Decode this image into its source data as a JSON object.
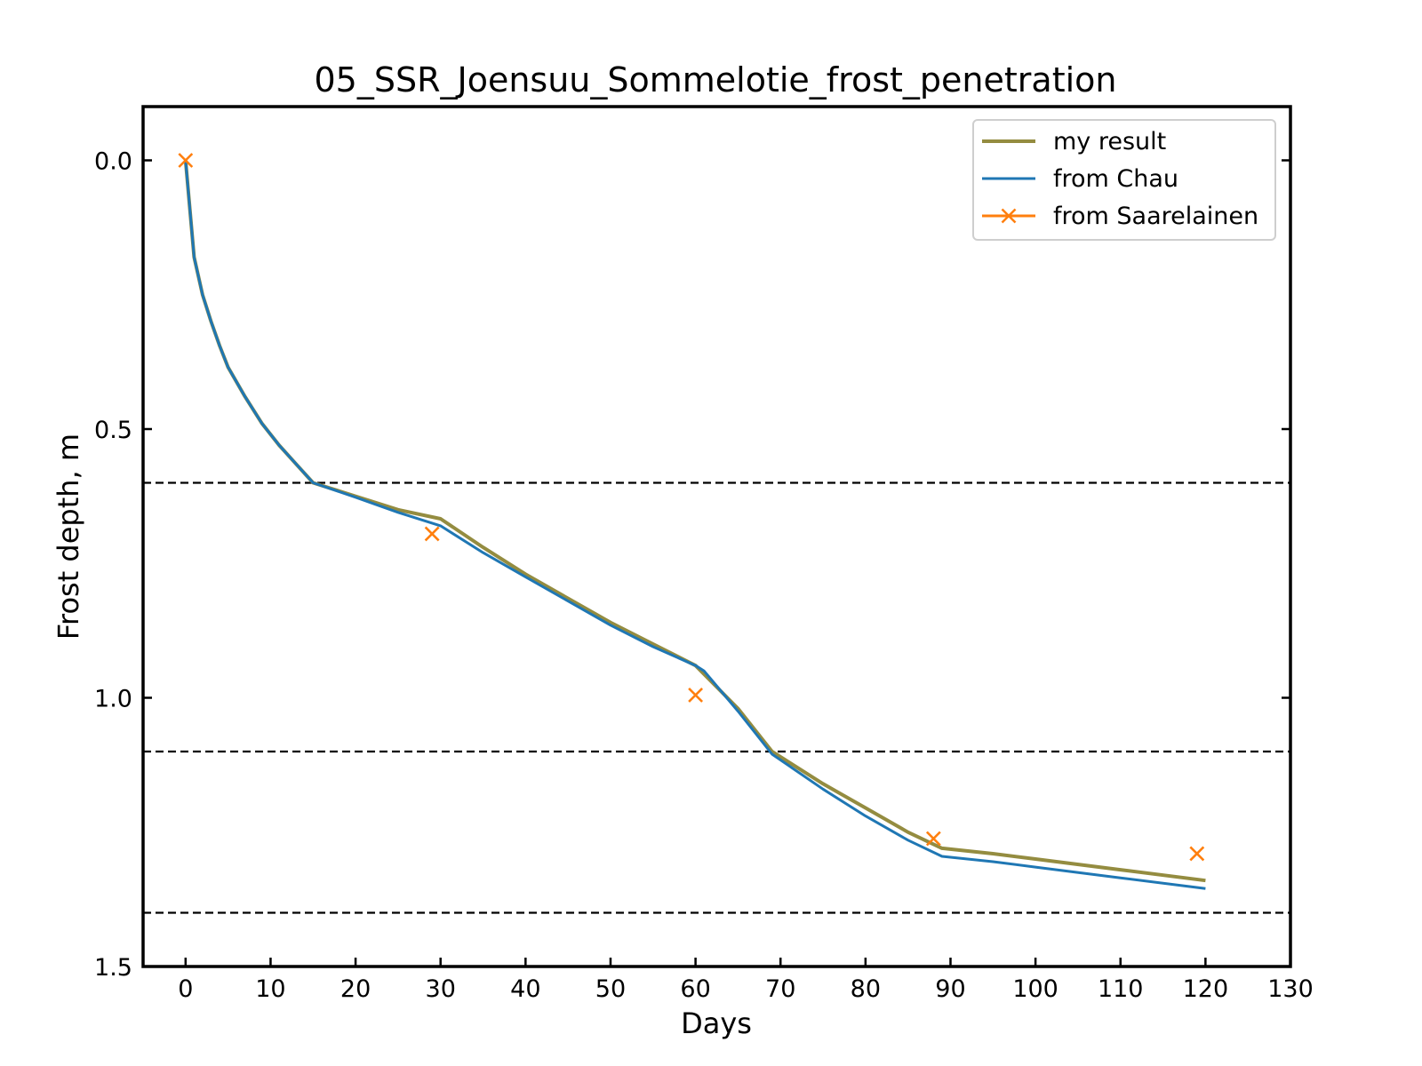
{
  "chart_data": {
    "type": "line",
    "title": "05_SSR_Joensuu_Sommelotie_frost_penetration",
    "xlabel": "Days",
    "ylabel": "Frost depth, m",
    "xlim": [
      -5,
      130
    ],
    "ylim": [
      1.5,
      -0.1
    ],
    "y_inverted": true,
    "x_ticks": [
      0,
      10,
      20,
      30,
      40,
      50,
      60,
      70,
      80,
      90,
      100,
      110,
      120,
      130
    ],
    "y_ticks": [
      0.0,
      0.5,
      1.0,
      1.5
    ],
    "y_tick_labels": [
      "0.0",
      "0.5",
      "1.0",
      "1.5"
    ],
    "grid": false,
    "legend_position": "top-right",
    "reference_lines": [
      {
        "y": 0.6,
        "style": "dashed",
        "color": "#000000"
      },
      {
        "y": 1.1,
        "style": "dashed",
        "color": "#000000"
      },
      {
        "y": 1.4,
        "style": "dashed",
        "color": "#000000"
      }
    ],
    "series": [
      {
        "name": "my result",
        "color": "#948c40",
        "line_width": 4,
        "marker": "none",
        "points": [
          [
            0,
            0.0
          ],
          [
            1,
            0.18
          ],
          [
            2,
            0.25
          ],
          [
            3,
            0.3
          ],
          [
            4,
            0.345
          ],
          [
            5,
            0.385
          ],
          [
            7,
            0.44
          ],
          [
            9,
            0.49
          ],
          [
            11,
            0.53
          ],
          [
            13,
            0.565
          ],
          [
            15,
            0.6
          ],
          [
            20,
            0.625
          ],
          [
            25,
            0.65
          ],
          [
            30,
            0.667
          ],
          [
            35,
            0.72
          ],
          [
            40,
            0.77
          ],
          [
            45,
            0.815
          ],
          [
            50,
            0.86
          ],
          [
            55,
            0.9
          ],
          [
            60,
            0.94
          ],
          [
            65,
            1.02
          ],
          [
            69,
            1.1
          ],
          [
            75,
            1.16
          ],
          [
            80,
            1.205
          ],
          [
            85,
            1.25
          ],
          [
            89,
            1.28
          ],
          [
            95,
            1.29
          ],
          [
            100,
            1.3
          ],
          [
            110,
            1.32
          ],
          [
            120,
            1.34
          ]
        ]
      },
      {
        "name": "from Chau",
        "color": "#1f77b4",
        "line_width": 3,
        "marker": "none",
        "points": [
          [
            0,
            0.0
          ],
          [
            1,
            0.18
          ],
          [
            2,
            0.25
          ],
          [
            3,
            0.3
          ],
          [
            4,
            0.345
          ],
          [
            5,
            0.385
          ],
          [
            7,
            0.44
          ],
          [
            9,
            0.49
          ],
          [
            11,
            0.53
          ],
          [
            13,
            0.565
          ],
          [
            15,
            0.6
          ],
          [
            20,
            0.627
          ],
          [
            25,
            0.655
          ],
          [
            30,
            0.68
          ],
          [
            35,
            0.73
          ],
          [
            40,
            0.775
          ],
          [
            45,
            0.82
          ],
          [
            50,
            0.865
          ],
          [
            55,
            0.905
          ],
          [
            60,
            0.94
          ],
          [
            61,
            0.95
          ],
          [
            65,
            1.025
          ],
          [
            69,
            1.105
          ],
          [
            75,
            1.17
          ],
          [
            80,
            1.22
          ],
          [
            85,
            1.265
          ],
          [
            89,
            1.295
          ],
          [
            95,
            1.305
          ],
          [
            100,
            1.315
          ],
          [
            110,
            1.335
          ],
          [
            120,
            1.355
          ]
        ]
      },
      {
        "name": "from Saarelainen",
        "color": "#ff7f0e",
        "line_width": 3,
        "marker": "x",
        "line_visible": false,
        "points": [
          [
            0,
            0.0
          ],
          [
            29,
            0.695
          ],
          [
            60,
            0.995
          ],
          [
            88,
            1.262
          ],
          [
            119,
            1.29
          ]
        ]
      }
    ]
  }
}
